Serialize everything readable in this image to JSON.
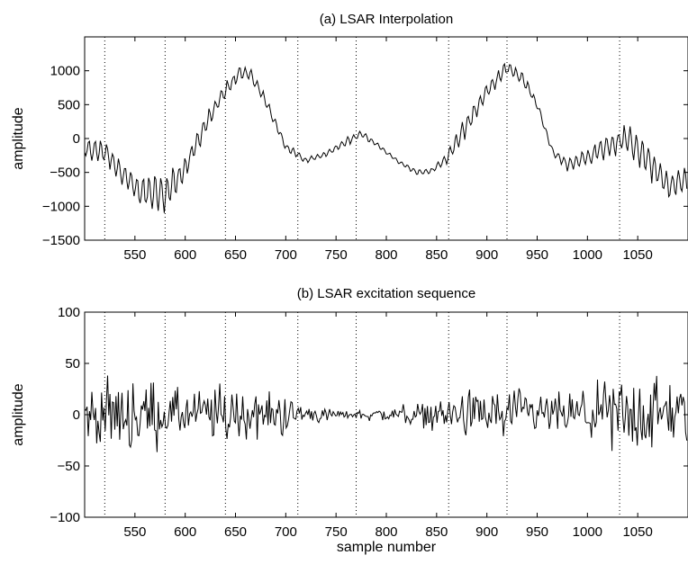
{
  "chart_data": [
    {
      "type": "line",
      "title": "(a) LSAR Interpolation",
      "xlabel": "",
      "ylabel": "amplitude",
      "xlim": [
        500,
        1100
      ],
      "ylim": [
        -1500,
        1500
      ],
      "xticks": [
        550,
        600,
        650,
        700,
        750,
        800,
        850,
        900,
        950,
        1000,
        1050
      ],
      "xtick_labels": [
        "550",
        "600",
        "650",
        "700",
        "750",
        "800",
        "850",
        "900",
        "950",
        "1000",
        "1050"
      ],
      "yticks": [
        -1500,
        -1000,
        -500,
        0,
        500,
        1000
      ],
      "ytick_labels": [
        "−1500",
        "−1000",
        "−500",
        "0",
        "500",
        "1000"
      ],
      "dotted_vlines": [
        520,
        580,
        640,
        712,
        770,
        862,
        920,
        1032
      ],
      "grid": false,
      "line_color": "#000000",
      "envelope": {
        "x": [
          500,
          520,
          540,
          555,
          565,
          580,
          600,
          620,
          640,
          655,
          665,
          680,
          700,
          720,
          740,
          760,
          775,
          790,
          810,
          830,
          845,
          860,
          880,
          900,
          920,
          935,
          950,
          965,
          980,
          1000,
          1020,
          1040,
          1060,
          1080,
          1100
        ],
        "y": [
          -150,
          -200,
          -550,
          -800,
          -820,
          -830,
          -450,
          200,
          700,
          980,
          950,
          550,
          -120,
          -320,
          -230,
          -50,
          70,
          -80,
          -320,
          -500,
          -480,
          -300,
          200,
          700,
          1050,
          900,
          500,
          -180,
          -380,
          -280,
          -100,
          0,
          -330,
          -700,
          -600
        ]
      },
      "oscillation": {
        "x": [
          500,
          540,
          560,
          580,
          620,
          650,
          700,
          740,
          760,
          800,
          830,
          850,
          880,
          900,
          930,
          960,
          1000,
          1030,
          1060,
          1100
        ],
        "amp": [
          150,
          180,
          300,
          280,
          140,
          120,
          60,
          40,
          70,
          30,
          40,
          50,
          170,
          110,
          120,
          60,
          140,
          220,
          250,
          200
        ]
      }
    },
    {
      "type": "line",
      "title": "(b) LSAR excitation sequence",
      "xlabel": "sample number",
      "ylabel": "amplitude",
      "xlim": [
        500,
        1100
      ],
      "ylim": [
        -100,
        100
      ],
      "xticks": [
        550,
        600,
        650,
        700,
        750,
        800,
        850,
        900,
        950,
        1000,
        1050
      ],
      "xtick_labels": [
        "550",
        "600",
        "650",
        "700",
        "750",
        "800",
        "850",
        "900",
        "950",
        "1000",
        "1050"
      ],
      "yticks": [
        -100,
        -50,
        0,
        50,
        100
      ],
      "ytick_labels": [
        "−100",
        "−50",
        "0",
        "50",
        "100"
      ],
      "dotted_vlines": [
        520,
        580,
        640,
        712,
        770,
        862,
        920,
        1032
      ],
      "grid": false,
      "line_color": "#000000",
      "envelope": {
        "x": [
          500,
          520,
          540,
          560,
          580,
          600,
          620,
          640,
          660,
          680,
          700,
          720,
          740,
          760,
          780,
          800,
          820,
          840,
          860,
          880,
          900,
          920,
          940,
          960,
          980,
          1000,
          1020,
          1040,
          1060,
          1080,
          1100
        ],
        "amp": [
          30,
          35,
          45,
          45,
          30,
          28,
          32,
          40,
          30,
          28,
          24,
          15,
          8,
          4,
          7,
          9,
          12,
          14,
          22,
          28,
          30,
          32,
          28,
          24,
          25,
          28,
          40,
          48,
          48,
          42,
          40
        ]
      }
    }
  ]
}
